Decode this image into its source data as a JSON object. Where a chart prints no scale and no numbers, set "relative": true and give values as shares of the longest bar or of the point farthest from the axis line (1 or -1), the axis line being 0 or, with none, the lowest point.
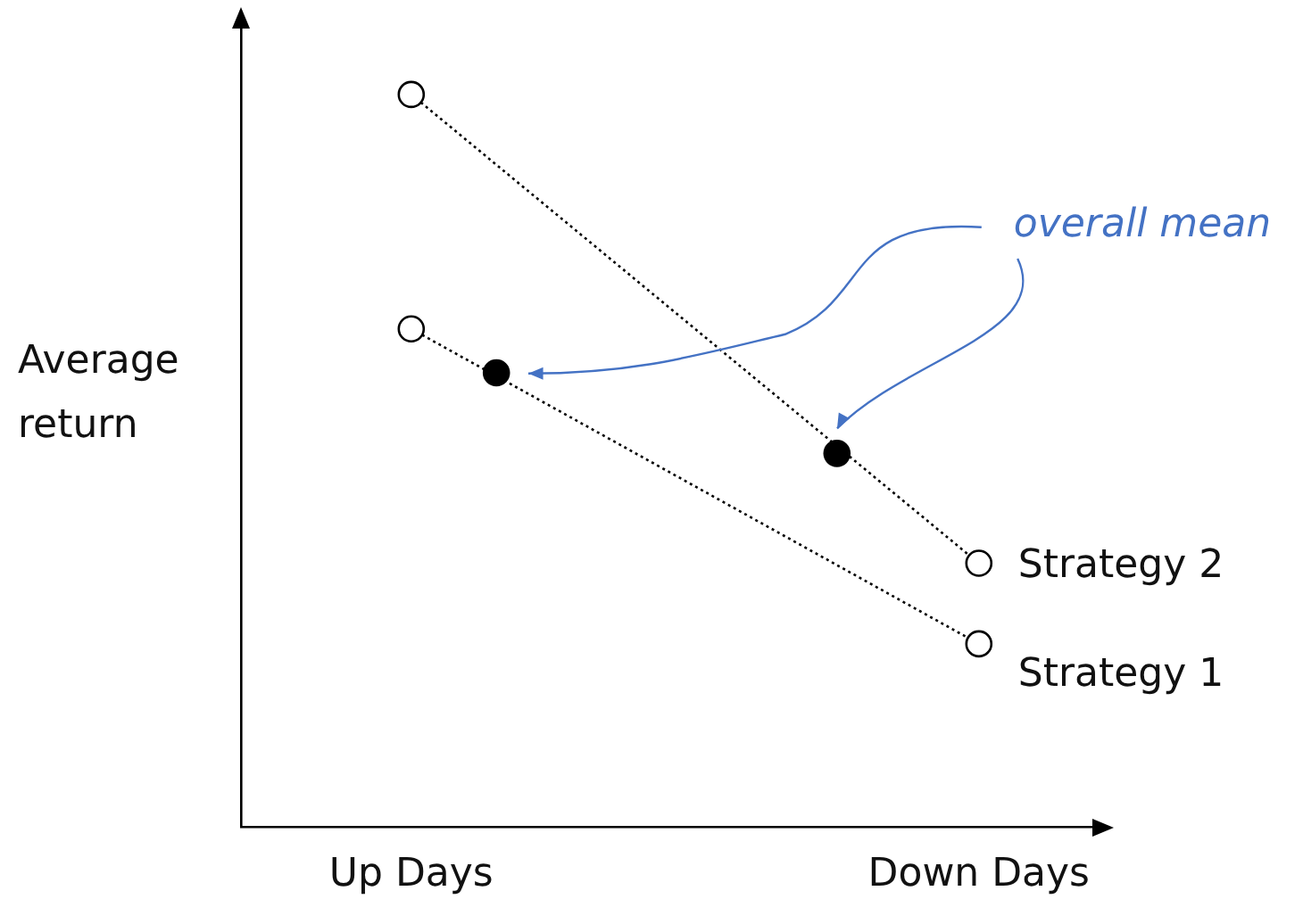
{
  "chart_data": {
    "type": "line",
    "relative": true,
    "ylabel": "Average return",
    "categories": [
      null,
      null,
      null,
      null,
      null,
      null,
      "Up Days",
      null,
      null,
      null,
      null,
      null,
      null,
      null,
      null,
      null,
      null,
      null,
      null,
      null,
      null,
      null,
      null,
      null,
      null,
      null,
      "Down Days",
      null,
      null,
      null,
      null
    ],
    "series": [
      {
        "name": "Strategy 2",
        "color": "#000000",
        "values": [
          null,
          null,
          null,
          null,
          null,
          null,
          1,
          null,
          null,
          null,
          null,
          null,
          null,
          null,
          null,
          null,
          null,
          null,
          null,
          null,
          null,
          null,
          null,
          null,
          null,
          null,
          0.36,
          null,
          null,
          null,
          null
        ],
        "line_style": "dotted",
        "marker": "circle"
      },
      {
        "name": "Strategy 1",
        "color": "#000000",
        "values": [
          null,
          null,
          null,
          null,
          null,
          null,
          0.68,
          null,
          null,
          null,
          null,
          null,
          null,
          null,
          null,
          null,
          null,
          null,
          null,
          null,
          null,
          null,
          null,
          null,
          null,
          null,
          0.25,
          null,
          null,
          null,
          null
        ],
        "line_style": "dotted",
        "marker": "circle"
      },
      {
        "type": "scatter",
        "color": "#000000",
        "values": [
          null,
          null,
          null,
          null,
          null,
          null,
          null,
          null,
          null,
          0.62,
          null,
          null,
          null,
          null,
          null,
          null,
          null,
          null,
          null,
          null,
          null,
          0.51,
          null,
          null,
          null,
          null,
          null,
          null,
          null,
          null,
          null
        ],
        "marker": "circle"
      }
    ],
    "annotations": [
      "overall mean"
    ],
    "grid": false,
    "legend": false
  }
}
